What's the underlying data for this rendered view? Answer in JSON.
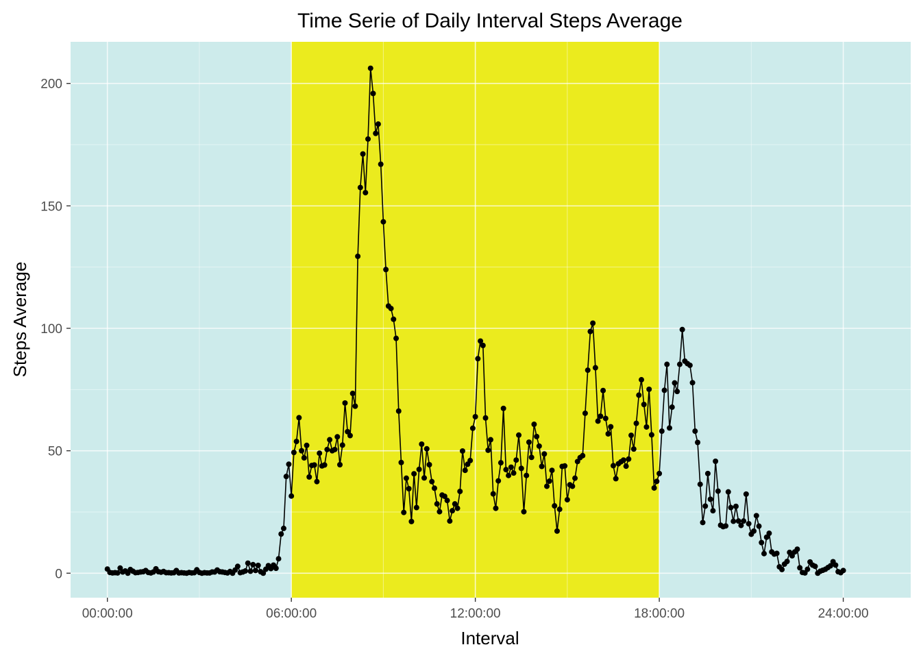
{
  "chart_data": {
    "type": "line",
    "title": "Time Serie of Daily Interval Steps Average",
    "xlabel": "Interval",
    "ylabel": "Steps Average",
    "x_unit": "hours",
    "xlim": [
      -1.2,
      26.2
    ],
    "ylim": [
      -10,
      217
    ],
    "x_ticks": [
      {
        "value": 0,
        "label": "00:00:00"
      },
      {
        "value": 6,
        "label": "06:00:00"
      },
      {
        "value": 12,
        "label": "12:00:00"
      },
      {
        "value": 18,
        "label": "18:00:00"
      },
      {
        "value": 24,
        "label": "24:00:00"
      }
    ],
    "y_ticks": [
      {
        "value": 0,
        "label": "0"
      },
      {
        "value": 50,
        "label": "50"
      },
      {
        "value": 100,
        "label": "100"
      },
      {
        "value": 150,
        "label": "150"
      },
      {
        "value": 200,
        "label": "200"
      }
    ],
    "grid": true,
    "shaded_regions": [
      {
        "from": -1.2,
        "to": 6,
        "color": "#cdebeb"
      },
      {
        "from": 6,
        "to": 18,
        "color": "#ebeb1e"
      },
      {
        "from": 18,
        "to": 26.2,
        "color": "#cdebeb"
      }
    ],
    "series": [
      {
        "color": "#000000",
        "values": [
          [
            0.0,
            1.7
          ],
          [
            0.083,
            0.3
          ],
          [
            0.167,
            0.1
          ],
          [
            0.25,
            0.2
          ],
          [
            0.333,
            0.1
          ],
          [
            0.417,
            2.1
          ],
          [
            0.5,
            0.5
          ],
          [
            0.583,
            0.9
          ],
          [
            0.667,
            0.0
          ],
          [
            0.75,
            1.5
          ],
          [
            0.833,
            0.8
          ],
          [
            0.917,
            0.2
          ],
          [
            1.0,
            0.3
          ],
          [
            1.083,
            0.5
          ],
          [
            1.167,
            0.6
          ],
          [
            1.25,
            1.1
          ],
          [
            1.333,
            0.3
          ],
          [
            1.417,
            0.1
          ],
          [
            1.5,
            0.5
          ],
          [
            1.583,
            1.8
          ],
          [
            1.667,
            0.6
          ],
          [
            1.75,
            0.4
          ],
          [
            1.833,
            0.7
          ],
          [
            1.917,
            0.2
          ],
          [
            2.0,
            0.2
          ],
          [
            2.083,
            0.1
          ],
          [
            2.167,
            0.2
          ],
          [
            2.25,
            1.1
          ],
          [
            2.333,
            0.1
          ],
          [
            2.417,
            0.2
          ],
          [
            2.5,
            0.1
          ],
          [
            2.583,
            0.0
          ],
          [
            2.667,
            0.3
          ],
          [
            2.75,
            0.1
          ],
          [
            2.833,
            0.2
          ],
          [
            2.917,
            1.4
          ],
          [
            3.0,
            0.3
          ],
          [
            3.083,
            0.0
          ],
          [
            3.167,
            0.2
          ],
          [
            3.25,
            0.1
          ],
          [
            3.333,
            0.1
          ],
          [
            3.417,
            0.5
          ],
          [
            3.5,
            0.5
          ],
          [
            3.583,
            1.3
          ],
          [
            3.667,
            0.6
          ],
          [
            3.75,
            0.5
          ],
          [
            3.833,
            0.3
          ],
          [
            3.917,
            0.1
          ],
          [
            4.0,
            0.7
          ],
          [
            4.083,
            0.0
          ],
          [
            4.167,
            1.3
          ],
          [
            4.25,
            2.8
          ],
          [
            4.333,
            0.2
          ],
          [
            4.417,
            0.5
          ],
          [
            4.5,
            0.9
          ],
          [
            4.583,
            4.1
          ],
          [
            4.667,
            0.8
          ],
          [
            4.75,
            3.5
          ],
          [
            4.833,
            1.1
          ],
          [
            4.917,
            3.2
          ],
          [
            5.0,
            0.6
          ],
          [
            5.083,
            0.0
          ],
          [
            5.167,
            1.6
          ],
          [
            5.25,
            3.1
          ],
          [
            5.333,
            1.9
          ],
          [
            5.417,
            3.3
          ],
          [
            5.5,
            2.0
          ],
          [
            5.583,
            5.9
          ],
          [
            5.667,
            16.0
          ],
          [
            5.75,
            18.3
          ],
          [
            5.833,
            39.5
          ],
          [
            5.917,
            44.5
          ],
          [
            6.0,
            31.5
          ],
          [
            6.083,
            49.3
          ],
          [
            6.167,
            53.8
          ],
          [
            6.25,
            63.5
          ],
          [
            6.333,
            50.0
          ],
          [
            6.417,
            47.1
          ],
          [
            6.5,
            52.2
          ],
          [
            6.583,
            39.3
          ],
          [
            6.667,
            44.0
          ],
          [
            6.75,
            44.2
          ],
          [
            6.833,
            37.4
          ],
          [
            6.917,
            49.0
          ],
          [
            7.0,
            43.8
          ],
          [
            7.083,
            44.2
          ],
          [
            7.167,
            50.5
          ],
          [
            7.25,
            54.5
          ],
          [
            7.333,
            50.0
          ],
          [
            7.417,
            50.5
          ],
          [
            7.5,
            55.7
          ],
          [
            7.583,
            44.3
          ],
          [
            7.667,
            52.3
          ],
          [
            7.75,
            69.5
          ],
          [
            7.833,
            57.8
          ],
          [
            7.917,
            56.2
          ],
          [
            8.0,
            73.4
          ],
          [
            8.083,
            68.2
          ],
          [
            8.167,
            129.4
          ],
          [
            8.25,
            157.5
          ],
          [
            8.333,
            171.2
          ],
          [
            8.417,
            155.4
          ],
          [
            8.5,
            177.3
          ],
          [
            8.583,
            206.2
          ],
          [
            8.667,
            195.9
          ],
          [
            8.75,
            179.6
          ],
          [
            8.833,
            183.4
          ],
          [
            8.917,
            167.0
          ],
          [
            9.0,
            143.5
          ],
          [
            9.083,
            124.0
          ],
          [
            9.167,
            109.1
          ],
          [
            9.25,
            108.1
          ],
          [
            9.333,
            103.7
          ],
          [
            9.417,
            95.9
          ],
          [
            9.5,
            66.2
          ],
          [
            9.583,
            45.2
          ],
          [
            9.667,
            24.8
          ],
          [
            9.75,
            38.8
          ],
          [
            9.833,
            34.5
          ],
          [
            9.917,
            21.1
          ],
          [
            10.0,
            40.6
          ],
          [
            10.083,
            26.8
          ],
          [
            10.167,
            42.4
          ],
          [
            10.25,
            52.7
          ],
          [
            10.333,
            38.9
          ],
          [
            10.417,
            50.8
          ],
          [
            10.5,
            44.3
          ],
          [
            10.583,
            37.4
          ],
          [
            10.667,
            34.7
          ],
          [
            10.75,
            28.3
          ],
          [
            10.833,
            25.1
          ],
          [
            10.917,
            31.9
          ],
          [
            11.0,
            31.4
          ],
          [
            11.083,
            29.7
          ],
          [
            11.167,
            21.3
          ],
          [
            11.25,
            25.5
          ],
          [
            11.333,
            28.3
          ],
          [
            11.417,
            26.5
          ],
          [
            11.5,
            33.4
          ],
          [
            11.583,
            49.9
          ],
          [
            11.667,
            42.0
          ],
          [
            11.75,
            44.5
          ],
          [
            11.833,
            46.0
          ],
          [
            11.917,
            59.2
          ],
          [
            12.0,
            63.9
          ],
          [
            12.083,
            87.6
          ],
          [
            12.167,
            94.8
          ],
          [
            12.25,
            93.0
          ],
          [
            12.333,
            63.4
          ],
          [
            12.417,
            50.2
          ],
          [
            12.5,
            54.5
          ],
          [
            12.583,
            32.4
          ],
          [
            12.667,
            26.5
          ],
          [
            12.75,
            37.7
          ],
          [
            12.833,
            45.1
          ],
          [
            12.917,
            67.3
          ],
          [
            13.0,
            42.3
          ],
          [
            13.083,
            39.9
          ],
          [
            13.167,
            43.3
          ],
          [
            13.25,
            40.9
          ],
          [
            13.333,
            46.2
          ],
          [
            13.417,
            56.4
          ],
          [
            13.5,
            42.8
          ],
          [
            13.583,
            25.1
          ],
          [
            13.667,
            39.9
          ],
          [
            13.75,
            53.5
          ],
          [
            13.833,
            47.3
          ],
          [
            13.917,
            60.8
          ],
          [
            14.0,
            55.8
          ],
          [
            14.083,
            51.9
          ],
          [
            14.167,
            43.6
          ],
          [
            14.25,
            48.7
          ],
          [
            14.333,
            35.5
          ],
          [
            14.417,
            37.6
          ],
          [
            14.5,
            42.0
          ],
          [
            14.583,
            27.5
          ],
          [
            14.667,
            17.2
          ],
          [
            14.75,
            26.1
          ],
          [
            14.833,
            43.6
          ],
          [
            14.917,
            43.8
          ],
          [
            15.0,
            30.0
          ],
          [
            15.083,
            36.1
          ],
          [
            15.167,
            35.5
          ],
          [
            15.25,
            38.8
          ],
          [
            15.333,
            45.6
          ],
          [
            15.417,
            47.2
          ],
          [
            15.5,
            48.0
          ],
          [
            15.583,
            65.3
          ],
          [
            15.667,
            82.9
          ],
          [
            15.75,
            98.7
          ],
          [
            15.833,
            102.1
          ],
          [
            15.917,
            83.9
          ],
          [
            16.0,
            62.1
          ],
          [
            16.083,
            64.1
          ],
          [
            16.167,
            74.6
          ],
          [
            16.25,
            63.2
          ],
          [
            16.333,
            56.9
          ],
          [
            16.417,
            59.8
          ],
          [
            16.5,
            43.9
          ],
          [
            16.583,
            38.6
          ],
          [
            16.667,
            44.7
          ],
          [
            16.75,
            45.5
          ],
          [
            16.833,
            46.2
          ],
          [
            16.917,
            43.7
          ],
          [
            17.0,
            46.6
          ],
          [
            17.083,
            56.3
          ],
          [
            17.167,
            50.7
          ],
          [
            17.25,
            61.2
          ],
          [
            17.333,
            72.7
          ],
          [
            17.417,
            79.0
          ],
          [
            17.5,
            68.9
          ],
          [
            17.583,
            59.7
          ],
          [
            17.667,
            75.1
          ],
          [
            17.75,
            56.5
          ],
          [
            17.833,
            34.8
          ],
          [
            17.917,
            37.5
          ],
          [
            18.0,
            40.7
          ],
          [
            18.083,
            58.0
          ],
          [
            18.167,
            74.7
          ],
          [
            18.25,
            85.3
          ],
          [
            18.333,
            59.3
          ],
          [
            18.417,
            67.8
          ],
          [
            18.5,
            77.7
          ],
          [
            18.583,
            74.2
          ],
          [
            18.667,
            85.3
          ],
          [
            18.75,
            99.5
          ],
          [
            18.833,
            86.6
          ],
          [
            18.917,
            85.6
          ],
          [
            19.0,
            84.9
          ],
          [
            19.083,
            77.8
          ],
          [
            19.167,
            58.0
          ],
          [
            19.25,
            53.4
          ],
          [
            19.333,
            36.3
          ],
          [
            19.417,
            20.7
          ],
          [
            19.5,
            27.4
          ],
          [
            19.583,
            40.7
          ],
          [
            19.667,
            30.2
          ],
          [
            19.75,
            25.5
          ],
          [
            19.833,
            45.7
          ],
          [
            19.917,
            33.5
          ],
          [
            20.0,
            19.6
          ],
          [
            20.083,
            19.0
          ],
          [
            20.167,
            19.3
          ],
          [
            20.25,
            33.2
          ],
          [
            20.333,
            26.8
          ],
          [
            20.417,
            21.2
          ],
          [
            20.5,
            27.3
          ],
          [
            20.583,
            21.3
          ],
          [
            20.667,
            19.5
          ],
          [
            20.75,
            21.3
          ],
          [
            20.833,
            32.3
          ],
          [
            20.917,
            20.2
          ],
          [
            21.0,
            15.9
          ],
          [
            21.083,
            17.2
          ],
          [
            21.167,
            23.5
          ],
          [
            21.25,
            19.2
          ],
          [
            21.333,
            12.5
          ],
          [
            21.417,
            8.0
          ],
          [
            21.5,
            14.7
          ],
          [
            21.583,
            16.3
          ],
          [
            21.667,
            8.7
          ],
          [
            21.75,
            7.8
          ],
          [
            21.833,
            8.1
          ],
          [
            21.917,
            2.6
          ],
          [
            22.0,
            1.5
          ],
          [
            22.083,
            3.7
          ],
          [
            22.167,
            4.8
          ],
          [
            22.25,
            8.5
          ],
          [
            22.333,
            7.1
          ],
          [
            22.417,
            8.7
          ],
          [
            22.5,
            9.8
          ],
          [
            22.583,
            2.2
          ],
          [
            22.667,
            0.3
          ],
          [
            22.75,
            0.1
          ],
          [
            22.833,
            1.6
          ],
          [
            22.917,
            4.6
          ],
          [
            23.0,
            3.3
          ],
          [
            23.083,
            2.8
          ],
          [
            23.167,
            0.0
          ],
          [
            23.25,
            0.8
          ],
          [
            23.333,
            1.2
          ],
          [
            23.417,
            1.6
          ],
          [
            23.5,
            2.3
          ],
          [
            23.583,
            3.0
          ],
          [
            23.667,
            4.7
          ],
          [
            23.75,
            3.3
          ],
          [
            23.833,
            0.6
          ],
          [
            23.917,
            0.2
          ],
          [
            24.0,
            1.1
          ]
        ]
      }
    ]
  }
}
